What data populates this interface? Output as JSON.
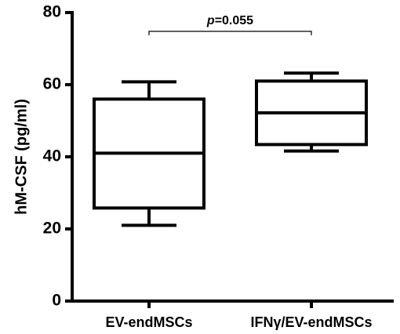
{
  "chart_data": {
    "type": "boxplot",
    "ylabel": "hM-CSF (pg/ml)",
    "xlabel": "",
    "ylim": [
      0,
      80
    ],
    "yticks": [
      0,
      20,
      40,
      60,
      80
    ],
    "categories": [
      "EV-endMSCs",
      "IFNγ/EV-endMSCs"
    ],
    "boxes": [
      {
        "category": "EV-endMSCs",
        "min": 21,
        "q1": 25.8,
        "median": 41,
        "q3": 56,
        "max": 60.8
      },
      {
        "category": "IFNγ/EV-endMSCs",
        "min": 41.6,
        "q1": 43.4,
        "median": 52.2,
        "q3": 61,
        "max": 63.2
      }
    ],
    "annotation": {
      "italic": "p",
      "text": "=0.055",
      "between": [
        0,
        1
      ]
    },
    "grid": false,
    "colors": {
      "line": "#000000",
      "fill": "#ffffff"
    }
  }
}
